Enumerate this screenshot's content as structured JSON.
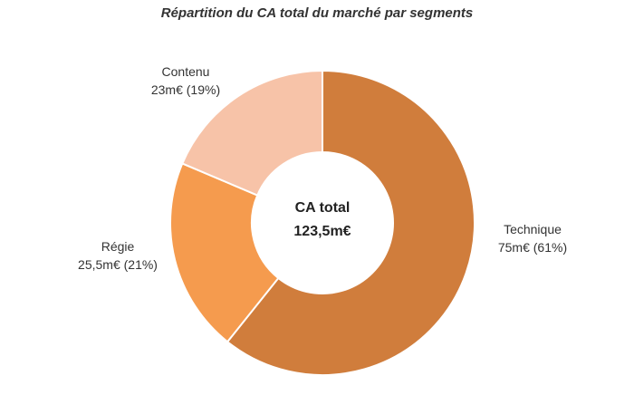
{
  "chart_data": {
    "type": "pie",
    "variant": "donut",
    "title": "Répartition du CA total du marché par segments",
    "center_label": {
      "line1": "CA total",
      "line2": "123,5m€"
    },
    "slices": [
      {
        "name": "Technique",
        "value": 75,
        "label_value": "75m€ (61%)",
        "color": "#d07d3c"
      },
      {
        "name": "Régie",
        "value": 25.5,
        "label_value": "25,5m€ (21%)",
        "color": "#f59b4e"
      },
      {
        "name": "Contenu",
        "value": 23,
        "label_value": "23m€ (19%)",
        "color": "#f7c3a8"
      }
    ],
    "units": "m€",
    "total": 123.5
  }
}
